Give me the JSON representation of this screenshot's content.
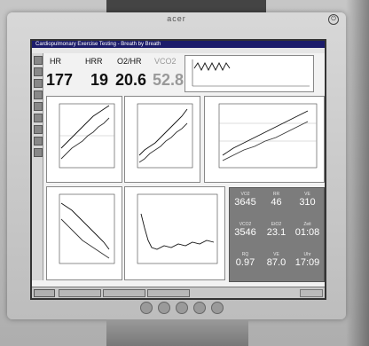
{
  "monitor": {
    "brand": "acer"
  },
  "app": {
    "title": "Cardiopulmonary Exercise Testing - Breath by Breath"
  },
  "metrics": [
    {
      "label": "HR",
      "value": "177"
    },
    {
      "label": "HRR",
      "value": "19"
    },
    {
      "label": "O2/HR",
      "value": "20.6"
    },
    {
      "label": "VCO2",
      "value": "52.8"
    }
  ],
  "stats": {
    "rows": [
      [
        {
          "label": "VO2",
          "value": "3645"
        },
        {
          "label": "RR",
          "value": "46"
        },
        {
          "label": "VE",
          "value": "310"
        }
      ],
      [
        {
          "label": "VCO2",
          "value": "3546"
        },
        {
          "label": "EtO2",
          "value": "23.1"
        },
        {
          "label": "Zeit",
          "value": "01:08"
        }
      ],
      [
        {
          "label": "RQ",
          "value": "0.97"
        },
        {
          "label": "VE",
          "value": "87.0"
        },
        {
          "label": "Uhr",
          "value": "17:09"
        }
      ]
    ]
  },
  "colors": {
    "stats_bg": "#7c7c7c",
    "titlebar": "#1c1c6a"
  }
}
